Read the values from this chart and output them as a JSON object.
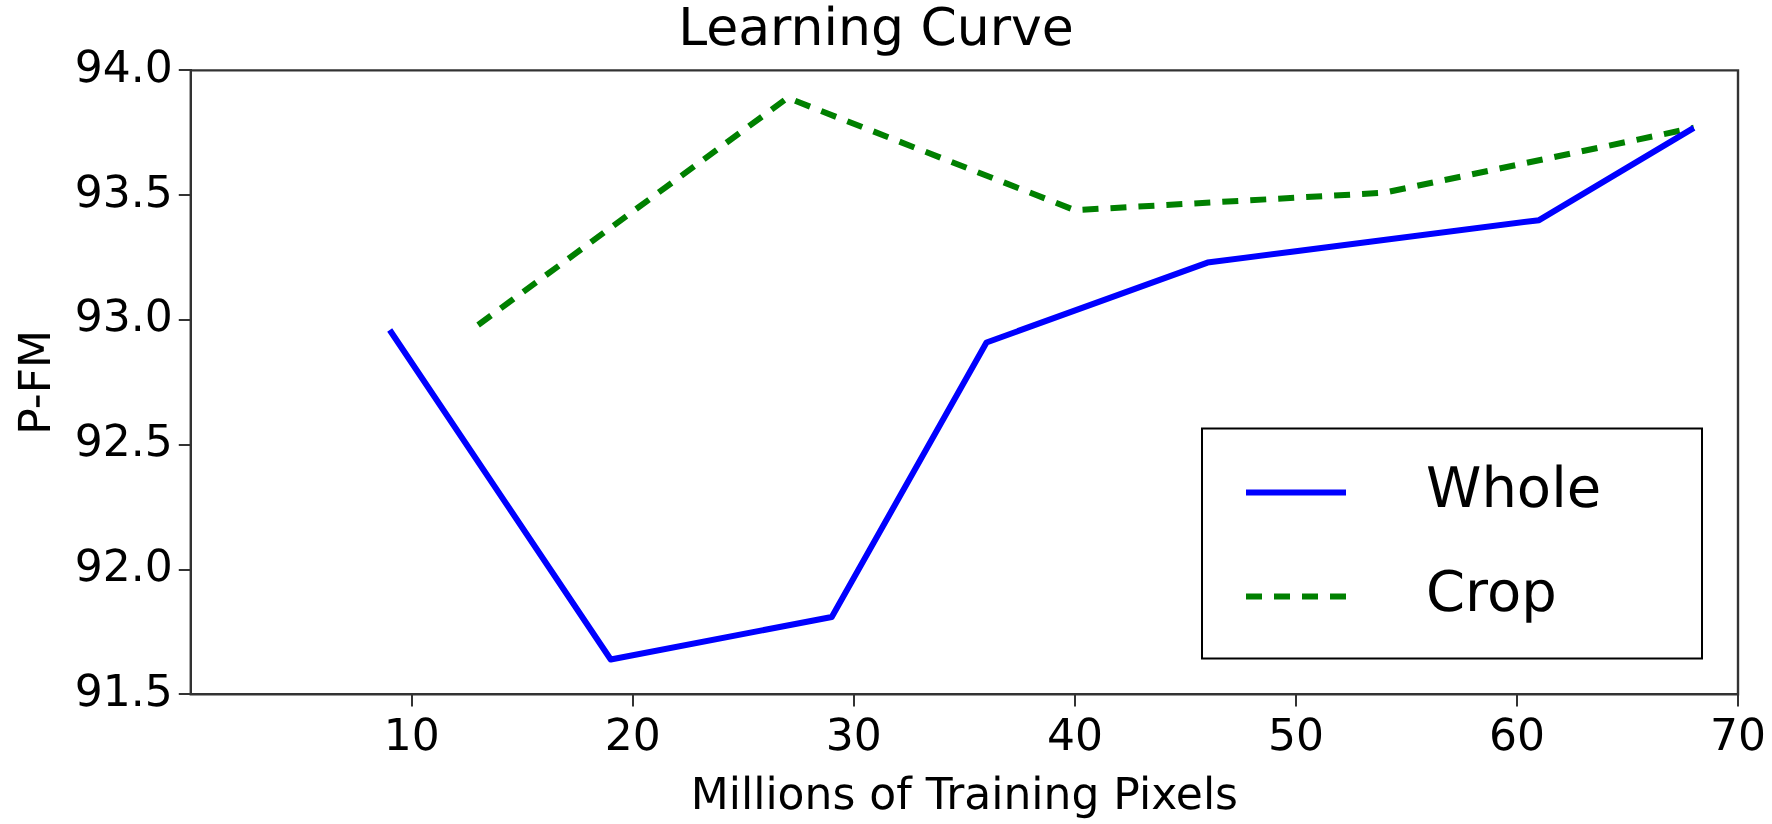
{
  "chart_data": {
    "type": "line",
    "title": "Learning Curve",
    "xlabel": "Millions of Training Pixels",
    "ylabel": "P-FM",
    "xlim": [
      0,
      70
    ],
    "xticks": [
      10,
      20,
      30,
      40,
      50,
      60,
      70
    ],
    "ylim": [
      91.5,
      94.0
    ],
    "yticks": [
      {
        "value": 91.5,
        "label": "91.5"
      },
      {
        "value": 92.0,
        "label": "92.0"
      },
      {
        "value": 92.5,
        "label": "92.5"
      },
      {
        "value": 93.0,
        "label": "93.0"
      },
      {
        "value": 93.5,
        "label": "93.5"
      },
      {
        "value": 94.0,
        "label": "94.0"
      }
    ],
    "grid": false,
    "legend": "bottom right",
    "marker": "none",
    "series": [
      {
        "name": "Whole",
        "color": "#0000ff",
        "line_style": "solid",
        "x": [
          9,
          19,
          29,
          36,
          46,
          61,
          68
        ],
        "values": [
          92.96,
          91.64,
          91.81,
          92.91,
          93.23,
          93.4,
          93.77
        ]
      },
      {
        "name": "Crop",
        "color": "#008000",
        "line_style": "dashed",
        "x": [
          13,
          27,
          40,
          54,
          68
        ],
        "values": [
          92.98,
          93.89,
          93.44,
          93.51,
          93.77
        ]
      }
    ]
  }
}
